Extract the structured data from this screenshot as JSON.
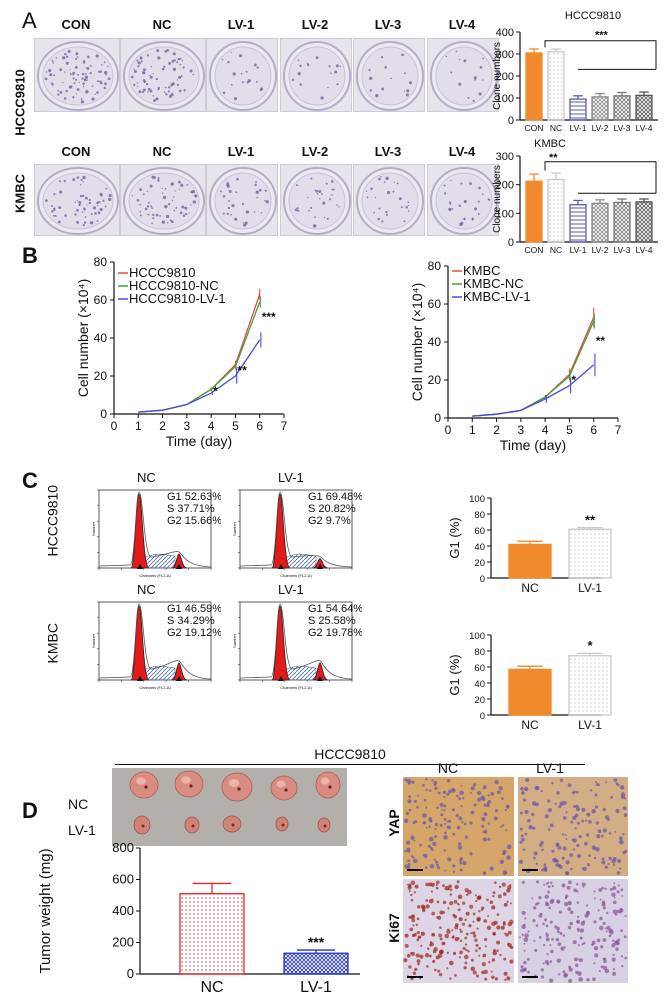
{
  "panels": {
    "a": "A",
    "b": "B",
    "c": "C",
    "d": "D"
  },
  "panel_a": {
    "columns": [
      "CON",
      "NC",
      "LV-1",
      "LV-2",
      "LV-3",
      "LV-4"
    ],
    "rows": [
      "HCCC9810",
      "KMBC"
    ]
  },
  "panel_c": {
    "rows": [
      "HCCC9810",
      "KMBC"
    ],
    "histograms": [
      {
        "label": "NC",
        "g1": "G1  52.63%",
        "s": "S    37.71%",
        "g2": "G2  15.66%"
      },
      {
        "label": "LV-1",
        "g1": "G1  69.48%",
        "s": "S    20.82%",
        "g2": "G2  9.7%"
      },
      {
        "label": "NC",
        "g1": "G1  46.59%",
        "s": "S    34.29%",
        "g2": "G2  19.12%"
      },
      {
        "label": "LV-1",
        "g1": "G1  54.64%",
        "s": "S    25.58%",
        "g2": "G2  19.78%"
      }
    ],
    "hist_xlabel": "Channels (FL2-A)",
    "hist_ylabel": "Number"
  },
  "panel_d": {
    "title": "HCCC9810",
    "tumor_rows": [
      "NC",
      "LV-1"
    ],
    "ihc_cols": [
      "NC",
      "LV-1"
    ],
    "ihc_rows": [
      "YAP",
      "Ki67"
    ]
  },
  "chart_data": [
    {
      "id": "clone-hccc9810",
      "type": "bar",
      "title": "HCCC9810",
      "categories": [
        "CON",
        "NC",
        "LV-1",
        "LV-2",
        "LV-3",
        "LV-4"
      ],
      "values": [
        305,
        310,
        95,
        105,
        110,
        112
      ],
      "errors": [
        18,
        12,
        15,
        15,
        15,
        15
      ],
      "ylabel": "Clone numbers",
      "ylim": [
        0,
        400
      ],
      "yticks": [
        0,
        100,
        200,
        300,
        400
      ],
      "significance": "***",
      "colors": [
        "#f08a2c",
        "#c8c8c8",
        "#5a5ab4",
        "#888888",
        "#777777",
        "#555555"
      ]
    },
    {
      "id": "clone-kmbc",
      "type": "bar",
      "title": "KMBC",
      "categories": [
        "CON",
        "NC",
        "LV-1",
        "LV-2",
        "LV-3",
        "LV-4"
      ],
      "values": [
        212,
        218,
        130,
        135,
        138,
        140
      ],
      "errors": [
        25,
        22,
        15,
        12,
        12,
        10
      ],
      "ylabel": "Clone numbers",
      "ylim": [
        0,
        300
      ],
      "yticks": [
        0,
        100,
        200,
        300
      ],
      "significance": "**",
      "colors": [
        "#f08a2c",
        "#c8c8c8",
        "#5a5ab4",
        "#888888",
        "#777777",
        "#555555"
      ]
    },
    {
      "id": "growth-hccc9810",
      "type": "line",
      "x": [
        1,
        2,
        3,
        4,
        5,
        6
      ],
      "series": [
        {
          "name": "HCCC9810",
          "values": [
            1,
            2,
            5,
            13,
            26,
            63
          ],
          "errors": [
            0,
            0,
            0,
            1,
            2,
            3
          ],
          "color": "#e84a3c"
        },
        {
          "name": "HCCC9810-NC",
          "values": [
            1,
            2,
            5,
            13,
            25,
            59
          ],
          "errors": [
            0,
            0,
            0,
            1,
            2,
            3
          ],
          "color": "#3aa63a"
        },
        {
          "name": "HCCC9810-LV-1",
          "values": [
            1,
            2,
            5,
            11,
            20,
            39
          ],
          "errors": [
            0,
            0,
            0,
            1,
            4,
            4
          ],
          "color": "#4a4ae0"
        }
      ],
      "xlabel": "Time (day)",
      "ylabel": "Cell number (×10⁴)",
      "xlim": [
        0,
        7
      ],
      "ylim": [
        0,
        80
      ],
      "xticks": [
        0,
        1,
        2,
        3,
        4,
        5,
        6,
        7
      ],
      "yticks": [
        0,
        20,
        40,
        60,
        80
      ],
      "annotations": [
        {
          "x": 4,
          "text": "*"
        },
        {
          "x": 5,
          "text": "**"
        },
        {
          "x": 6,
          "text": "***"
        }
      ]
    },
    {
      "id": "growth-kmbc",
      "type": "line",
      "x": [
        1,
        2,
        3,
        4,
        5,
        6
      ],
      "series": [
        {
          "name": "KMBC",
          "values": [
            1,
            2,
            4,
            11,
            23,
            53
          ],
          "errors": [
            0,
            0,
            0,
            1,
            3,
            5
          ],
          "color": "#e84a3c"
        },
        {
          "name": "KMBC-NC",
          "values": [
            1,
            2,
            4,
            11,
            22,
            51
          ],
          "errors": [
            0,
            0,
            0,
            1,
            3,
            4
          ],
          "color": "#3aa63a"
        },
        {
          "name": "KMBC-LV-1",
          "values": [
            1,
            2,
            4,
            10,
            17,
            28
          ],
          "errors": [
            0,
            0,
            0,
            2,
            4,
            6
          ],
          "color": "#4a4ae0"
        }
      ],
      "xlabel": "Time (day)",
      "ylabel": "Cell number (×10⁴)",
      "xlim": [
        0,
        7
      ],
      "ylim": [
        0,
        80
      ],
      "xticks": [
        0,
        1,
        2,
        3,
        4,
        5,
        6,
        7
      ],
      "yticks": [
        0,
        20,
        40,
        60,
        80
      ],
      "annotations": [
        {
          "x": 5,
          "text": "*"
        },
        {
          "x": 6,
          "text": "**"
        }
      ]
    },
    {
      "id": "g1-hccc9810",
      "type": "bar",
      "categories": [
        "NC",
        "LV-1"
      ],
      "values": [
        42,
        61
      ],
      "errors": [
        4,
        2
      ],
      "ylabel": "G1 (%)",
      "ylim": [
        0,
        100
      ],
      "yticks": [
        0,
        20,
        40,
        60,
        80,
        100
      ],
      "significance": "**",
      "colors": [
        "#f08a2c",
        "#c8c8c8"
      ]
    },
    {
      "id": "g1-kmbc",
      "type": "bar",
      "categories": [
        "NC",
        "LV-1"
      ],
      "values": [
        57,
        74
      ],
      "errors": [
        4,
        3
      ],
      "ylabel": "G1 (%)",
      "ylim": [
        0,
        100
      ],
      "yticks": [
        0,
        20,
        40,
        60,
        80,
        100
      ],
      "significance": "*",
      "colors": [
        "#f08a2c",
        "#c8c8c8"
      ]
    },
    {
      "id": "tumor-weight",
      "type": "bar",
      "categories": [
        "NC",
        "LV-1"
      ],
      "values": [
        510,
        132
      ],
      "errors": [
        65,
        20
      ],
      "ylabel": "Tumor weight (mg)",
      "ylim": [
        0,
        800
      ],
      "yticks": [
        0,
        200,
        400,
        600,
        800
      ],
      "significance": "***",
      "colors": [
        "#e8262c",
        "#2233cc"
      ]
    }
  ]
}
